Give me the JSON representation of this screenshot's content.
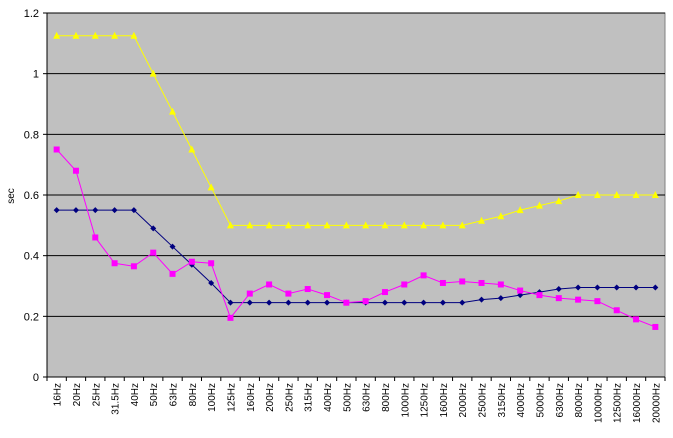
{
  "chart_data": {
    "type": "line",
    "title": "",
    "xlabel": "",
    "ylabel": "sec",
    "ylim": [
      0,
      1.2
    ],
    "yticks": [
      "0",
      "0.2",
      "0.4",
      "0.6",
      "0.8",
      "1",
      "1.2"
    ],
    "grid": "horizontal",
    "plot_background": "#c0c0c0",
    "categories": [
      "16Hz",
      "20Hz",
      "25Hz",
      "31.5Hz",
      "40Hz",
      "50Hz",
      "63Hz",
      "80Hz",
      "100Hz",
      "125Hz",
      "160Hz",
      "200Hz",
      "250Hz",
      "315Hz",
      "400Hz",
      "500Hz",
      "630Hz",
      "800Hz",
      "1000Hz",
      "1250Hz",
      "1600Hz",
      "2000Hz",
      "2500Hz",
      "3150Hz",
      "4000Hz",
      "5000Hz",
      "6300Hz",
      "8000Hz",
      "10000Hz",
      "12500Hz",
      "16000Hz",
      "20000Hz"
    ],
    "series": [
      {
        "color": "#00007f",
        "marker": "diamond",
        "values": [
          0.55,
          0.55,
          0.55,
          0.55,
          0.55,
          0.49,
          0.43,
          0.37,
          0.31,
          0.245,
          0.245,
          0.245,
          0.245,
          0.245,
          0.245,
          0.245,
          0.245,
          0.245,
          0.245,
          0.245,
          0.245,
          0.245,
          0.255,
          0.26,
          0.27,
          0.28,
          0.29,
          0.295,
          0.295,
          0.295,
          0.295,
          0.295
        ]
      },
      {
        "color": "#ff00ff",
        "marker": "square",
        "values": [
          0.75,
          0.68,
          0.46,
          0.375,
          0.365,
          0.41,
          0.34,
          0.38,
          0.375,
          0.195,
          0.275,
          0.305,
          0.275,
          0.29,
          0.27,
          0.245,
          0.25,
          0.28,
          0.305,
          0.335,
          0.31,
          0.315,
          0.31,
          0.305,
          0.285,
          0.27,
          0.26,
          0.255,
          0.25,
          0.22,
          0.19,
          0.165
        ]
      },
      {
        "color": "#ffff00",
        "marker": "triangle",
        "values": [
          1.125,
          1.125,
          1.125,
          1.125,
          1.125,
          1.0,
          0.875,
          0.75,
          0.625,
          0.5,
          0.5,
          0.5,
          0.5,
          0.5,
          0.5,
          0.5,
          0.5,
          0.5,
          0.5,
          0.5,
          0.5,
          0.5,
          0.515,
          0.53,
          0.55,
          0.565,
          0.58,
          0.6,
          0.6,
          0.6,
          0.6,
          0.6
        ]
      }
    ]
  }
}
